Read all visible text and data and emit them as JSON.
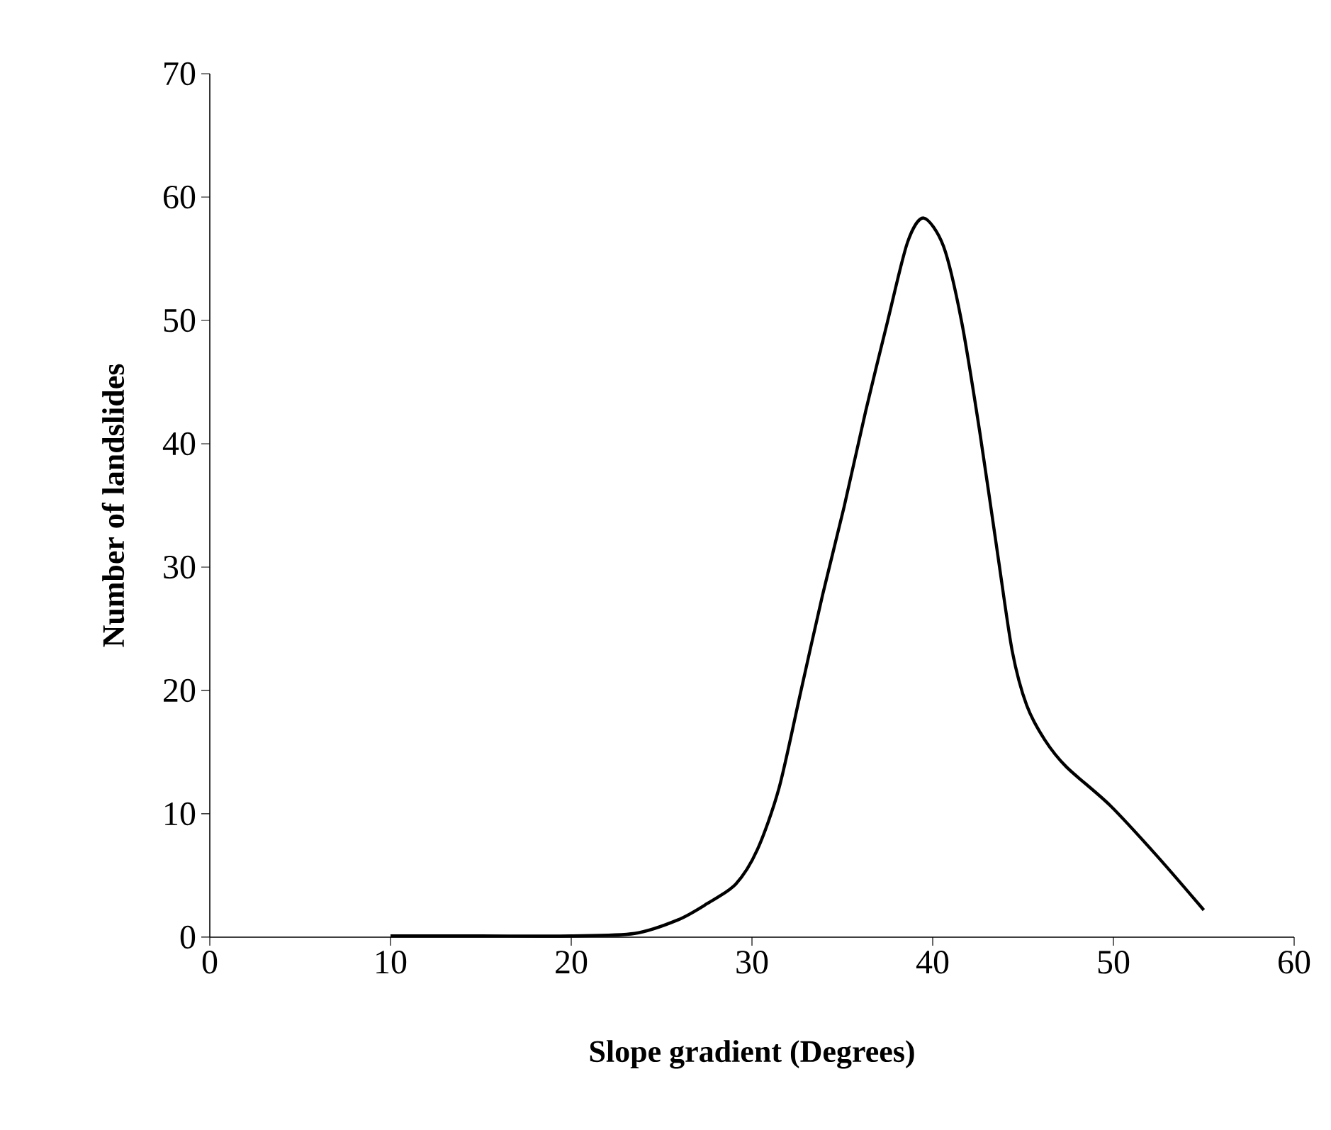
{
  "chart_data": {
    "type": "line",
    "xlabel": "Slope gradient (Degrees)",
    "ylabel": "Number of landslides",
    "x": [
      10,
      15,
      20,
      23.5,
      25.9,
      27.5,
      29.1,
      30.3,
      31.5,
      32.7,
      33.9,
      35.1,
      36.3,
      37.5,
      38.6,
      39.5,
      40.6,
      41.6,
      42.6,
      43.6,
      44.4,
      45.2,
      46.2,
      47.4,
      49.8,
      52.4,
      55.0
    ],
    "series": [
      {
        "color": "#000000",
        "values": [
          0.1,
          0.1,
          0.1,
          0.3,
          1.4,
          2.7,
          4.3,
          7.1,
          12.1,
          19.9,
          27.7,
          34.9,
          42.7,
          49.9,
          56.3,
          58.3,
          56,
          49.9,
          41,
          31,
          23.2,
          18.8,
          16,
          13.8,
          10.7,
          6.6,
          2.2
        ]
      }
    ],
    "xlim": [
      0,
      60
    ],
    "ylim": [
      0,
      70
    ],
    "xticks": [
      0,
      10,
      20,
      30,
      40,
      50,
      60
    ],
    "yticks": [
      0,
      10,
      20,
      30,
      40,
      50,
      60,
      70
    ],
    "grid": false,
    "marker": "none",
    "line_style": "solid"
  }
}
